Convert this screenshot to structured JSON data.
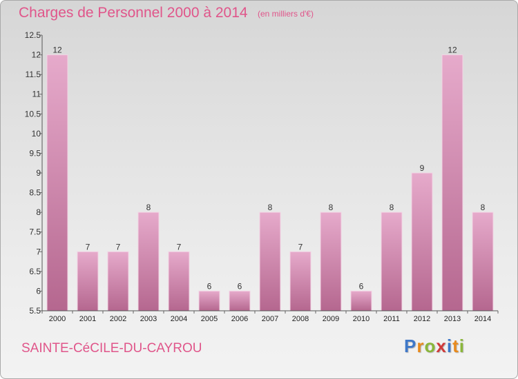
{
  "header": {
    "title": "Charges de Personnel 2000 à 2014",
    "subtitle": "(en milliers d'€)"
  },
  "footer": {
    "commune": "SAINTE-CéCILE-DU-CAYROU",
    "logo_text": "Proxiti",
    "logo_letters": [
      {
        "char": "P",
        "color": "#3f78c8"
      },
      {
        "char": "r",
        "color": "#e88a1c"
      },
      {
        "char": "o",
        "color": "#8ab63a"
      },
      {
        "char": "x",
        "color": "#d03a3a"
      },
      {
        "char": "i",
        "color": "#3f78c8"
      },
      {
        "char": "t",
        "color": "#e88a1c"
      },
      {
        "char": "i",
        "color": "#8ab63a"
      }
    ]
  },
  "colors": {
    "accent": "#e0558a",
    "bar_light": "#e6aacb",
    "bar_dark": "#b5678f",
    "bar_border": "#f3d3e4"
  },
  "chart_data": {
    "type": "bar",
    "categories": [
      "2000",
      "2001",
      "2002",
      "2003",
      "2004",
      "2005",
      "2006",
      "2007",
      "2008",
      "2009",
      "2010",
      "2011",
      "2012",
      "2013",
      "2014"
    ],
    "values": [
      12,
      7,
      7,
      8,
      7,
      6,
      6,
      8,
      7,
      8,
      6,
      8,
      9,
      12,
      8
    ],
    "y_tick_labels": [
      "5.5",
      "6",
      "6.5",
      "7",
      "7.5",
      "8",
      "8.5",
      "9",
      "9.5",
      "10",
      "10.5",
      "11",
      "11.5",
      "12",
      "12.5"
    ],
    "ylim": [
      5.5,
      12.5
    ],
    "grid": false,
    "legend": "none"
  }
}
